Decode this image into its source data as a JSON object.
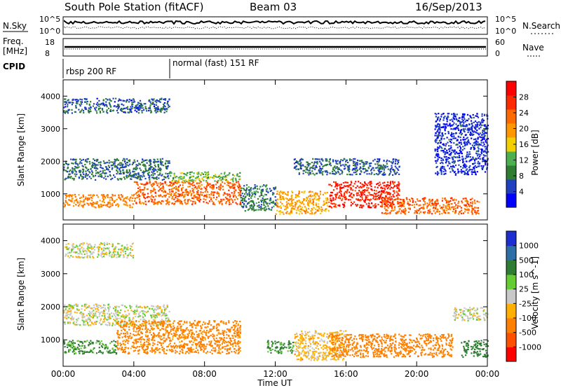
{
  "header": {
    "station": "South Pole Station (fitACF)",
    "beam": "Beam 03",
    "date": "16/Sep/2013"
  },
  "top_panels": {
    "nsky_label": "N.Sky",
    "nsky_ticks": [
      "10^5",
      "10^0"
    ],
    "nsearch_label": "N.Search",
    "nsearch_ticks": [
      "10^5",
      "10^0"
    ],
    "freq_label_1": "Freq.",
    "freq_label_2": "[MHz]",
    "freq_ticks": [
      "18",
      "8"
    ],
    "nave_label": "Nave",
    "nave_ticks": [
      "60",
      "0"
    ],
    "cpid_label": "CPID",
    "cpid_segments": [
      "rbsp 200 RF",
      "normal (fast) 151 RF"
    ]
  },
  "colors": {
    "power_scale": [
      "#0000ff",
      "#2040c0",
      "#2e7d32",
      "#4caf50",
      "#f2d000",
      "#ff9800",
      "#ff6a00",
      "#ff2a00",
      "#ff0000"
    ],
    "velocity_scale": [
      "#1d2fd0",
      "#2e6ea6",
      "#2e7d32",
      "#66cc33",
      "#c8c8c8",
      "#ffb000",
      "#ff8000",
      "#ff5000",
      "#ff0000"
    ]
  },
  "chart_data": [
    {
      "type": "heatmap",
      "title": "Power",
      "xlabel": "",
      "ylabel": "Slant Range [km]",
      "x_ticks": [
        "00:00",
        "04:00",
        "08:00",
        "12:00",
        "16:00",
        "20:00",
        "00:00"
      ],
      "y_ticks": [
        "1000",
        "2000",
        "3000",
        "4000"
      ],
      "ylim": [
        200,
        4500
      ],
      "colorbar": {
        "label": "Power [dB]",
        "ticks": [
          "4",
          "8",
          "12",
          "16",
          "20",
          "24",
          "28"
        ],
        "range": [
          0,
          30
        ]
      },
      "bands": [
        {
          "t0": 0.0,
          "t1": 6.0,
          "r0": 3500,
          "r1": 3950,
          "value": 6
        },
        {
          "t0": 0.0,
          "t1": 6.0,
          "r0": 1450,
          "r1": 2100,
          "value": 7
        },
        {
          "t0": 0.0,
          "t1": 4.0,
          "r0": 600,
          "r1": 1000,
          "value": 20
        },
        {
          "t0": 4.0,
          "t1": 10.0,
          "r0": 700,
          "r1": 1400,
          "value": 22
        },
        {
          "t0": 6.0,
          "t1": 10.0,
          "r0": 1400,
          "r1": 1700,
          "value": 12
        },
        {
          "t0": 10.0,
          "t1": 12.0,
          "r0": 500,
          "r1": 1300,
          "value": 8
        },
        {
          "t0": 12.0,
          "t1": 15.0,
          "r0": 400,
          "r1": 1100,
          "value": 18
        },
        {
          "t0": 15.0,
          "t1": 19.0,
          "r0": 600,
          "r1": 1400,
          "value": 26
        },
        {
          "t0": 18.0,
          "t1": 23.5,
          "r0": 400,
          "r1": 900,
          "value": 22
        },
        {
          "t0": 13.0,
          "t1": 19.0,
          "r0": 1600,
          "r1": 2100,
          "value": 6
        },
        {
          "t0": 21.0,
          "t1": 24.0,
          "r0": 1600,
          "r1": 3500,
          "value": 4
        }
      ]
    },
    {
      "type": "heatmap",
      "title": "Velocity",
      "xlabel": "Time UT",
      "ylabel": "Slant Range [km]",
      "x_ticks": [
        "00:00",
        "04:00",
        "08:00",
        "12:00",
        "16:00",
        "20:00",
        "00:00"
      ],
      "y_ticks": [
        "1000",
        "2000",
        "3000",
        "4000"
      ],
      "ylim": [
        200,
        4500
      ],
      "colorbar": {
        "label": "Velocity [m s^-1]",
        "ticks": [
          "1000",
          "500",
          "100",
          "25",
          "-25",
          "-100",
          "-500",
          "-1000"
        ]
      },
      "bands": [
        {
          "t0": 0.0,
          "t1": 4.0,
          "r0": 3500,
          "r1": 3950,
          "value": 0
        },
        {
          "t0": 0.0,
          "t1": 6.0,
          "r0": 1450,
          "r1": 2100,
          "value": 0
        },
        {
          "t0": 0.0,
          "t1": 3.0,
          "r0": 600,
          "r1": 1000,
          "value": 120
        },
        {
          "t0": 3.0,
          "t1": 10.0,
          "r0": 600,
          "r1": 1600,
          "value": -150
        },
        {
          "t0": 11.5,
          "t1": 13.0,
          "r0": 600,
          "r1": 1000,
          "value": 120
        },
        {
          "t0": 13.0,
          "t1": 16.0,
          "r0": 400,
          "r1": 1300,
          "value": -50
        },
        {
          "t0": 15.0,
          "t1": 22.0,
          "r0": 500,
          "r1": 1200,
          "value": -200
        },
        {
          "t0": 22.5,
          "t1": 24.0,
          "r0": 500,
          "r1": 1000,
          "value": 300
        },
        {
          "t0": 22.0,
          "t1": 24.0,
          "r0": 1600,
          "r1": 2000,
          "value": 0
        }
      ]
    }
  ]
}
